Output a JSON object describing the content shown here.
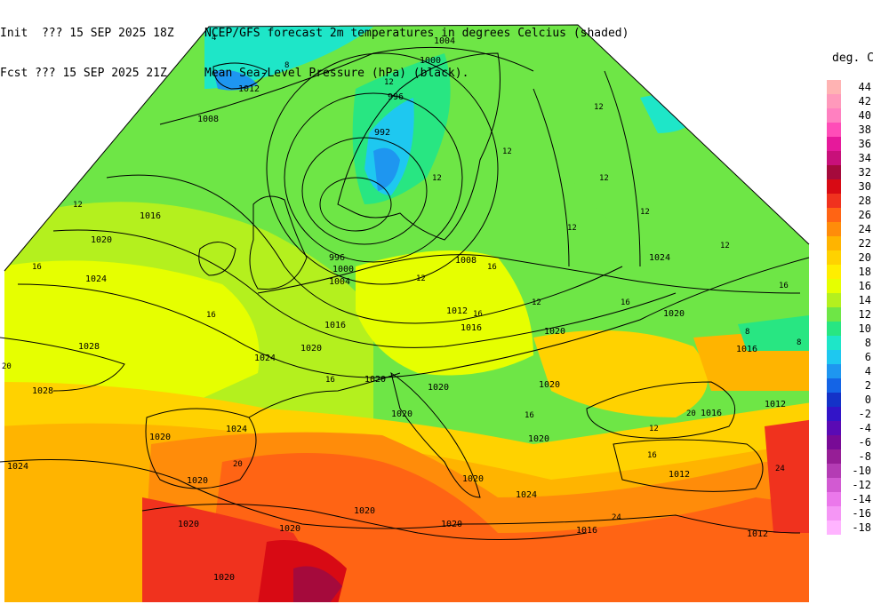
{
  "header": {
    "init_label": "Init  ??? 15 SEP 2025 18Z",
    "fcst_label": "Fcst ??? 15 SEP 2025 21Z",
    "title_line1": "NCEP/GFS forecast 2m temperatures in degrees Celcius (shaded)",
    "title_line2": "Mean Sea-Level Pressure (hPa) (black)."
  },
  "legend": {
    "title": "deg. C",
    "entries": [
      {
        "label": "44",
        "color": "#ffb3b3"
      },
      {
        "label": "42",
        "color": "#ff99bb"
      },
      {
        "label": "40",
        "color": "#ff80c0"
      },
      {
        "label": "38",
        "color": "#ff4db8"
      },
      {
        "label": "36",
        "color": "#e6199b"
      },
      {
        "label": "34",
        "color": "#c8107a"
      },
      {
        "label": "32",
        "color": "#a50a3c"
      },
      {
        "label": "30",
        "color": "#d80a14"
      },
      {
        "label": "28",
        "color": "#f0321e"
      },
      {
        "label": "26",
        "color": "#ff6414"
      },
      {
        "label": "24",
        "color": "#ff8c0a"
      },
      {
        "label": "22",
        "color": "#ffb400"
      },
      {
        "label": "20",
        "color": "#ffd200"
      },
      {
        "label": "18",
        "color": "#ffee00"
      },
      {
        "label": "16",
        "color": "#e6ff00"
      },
      {
        "label": "14",
        "color": "#b4f01e"
      },
      {
        "label": "12",
        "color": "#6ee646"
      },
      {
        "label": "10",
        "color": "#28e682"
      },
      {
        "label": "8",
        "color": "#1ee6c8"
      },
      {
        "label": "6",
        "color": "#1ec8f0"
      },
      {
        "label": "4",
        "color": "#1e96f0"
      },
      {
        "label": "2",
        "color": "#1464e6"
      },
      {
        "label": "0",
        "color": "#1432c8"
      },
      {
        "label": "-2",
        "color": "#3214c8"
      },
      {
        "label": "-4",
        "color": "#5a0ab4"
      },
      {
        "label": "-6",
        "color": "#780a96"
      },
      {
        "label": "-8",
        "color": "#961e96"
      },
      {
        "label": "-10",
        "color": "#b43cb4"
      },
      {
        "label": "-12",
        "color": "#d25ad2"
      },
      {
        "label": "-14",
        "color": "#eb78eb"
      },
      {
        "label": "-16",
        "color": "#f596f5"
      },
      {
        "label": "-18",
        "color": "#ffb4ff"
      }
    ]
  },
  "map": {
    "isobar_labels": [
      {
        "text": "1004"
      },
      {
        "text": "1000"
      },
      {
        "text": "996"
      },
      {
        "text": "992"
      },
      {
        "text": "1012"
      },
      {
        "text": "1008"
      },
      {
        "text": "1016"
      },
      {
        "text": "1020"
      },
      {
        "text": "1024"
      },
      {
        "text": "1028"
      },
      {
        "text": "1028"
      },
      {
        "text": "1024"
      },
      {
        "text": "996"
      },
      {
        "text": "1000"
      },
      {
        "text": "1004"
      },
      {
        "text": "1008"
      },
      {
        "text": "1012"
      },
      {
        "text": "1016"
      },
      {
        "text": "1016"
      },
      {
        "text": "1020"
      },
      {
        "text": "1024"
      },
      {
        "text": "1020"
      },
      {
        "text": "1020"
      },
      {
        "text": "1024"
      },
      {
        "text": "1020"
      },
      {
        "text": "1020"
      },
      {
        "text": "1020"
      },
      {
        "text": "1020"
      },
      {
        "text": "1020"
      },
      {
        "text": "1024"
      },
      {
        "text": "1020"
      },
      {
        "text": "1020"
      },
      {
        "text": "1020"
      },
      {
        "text": "1020"
      },
      {
        "text": "1020"
      },
      {
        "text": "1020"
      },
      {
        "text": "1016"
      },
      {
        "text": "1012"
      },
      {
        "text": "1012"
      },
      {
        "text": "1016"
      },
      {
        "text": "1016"
      },
      {
        "text": "1012"
      },
      {
        "text": "1020"
      },
      {
        "text": "1020"
      },
      {
        "text": "1024"
      }
    ],
    "temp_labels": [
      {
        "text": "4"
      },
      {
        "text": "8"
      },
      {
        "text": "12"
      },
      {
        "text": "12"
      },
      {
        "text": "12"
      },
      {
        "text": "12"
      },
      {
        "text": "12"
      },
      {
        "text": "12"
      },
      {
        "text": "12"
      },
      {
        "text": "12"
      },
      {
        "text": "16"
      },
      {
        "text": "16"
      },
      {
        "text": "16"
      },
      {
        "text": "16"
      },
      {
        "text": "16"
      },
      {
        "text": "16"
      },
      {
        "text": "20"
      },
      {
        "text": "20"
      },
      {
        "text": "20"
      },
      {
        "text": "24"
      },
      {
        "text": "24"
      },
      {
        "text": "12"
      },
      {
        "text": "16"
      },
      {
        "text": "8"
      },
      {
        "text": "8"
      },
      {
        "text": "12"
      },
      {
        "text": "12"
      },
      {
        "text": "16"
      },
      {
        "text": "16"
      },
      {
        "text": "12"
      }
    ]
  }
}
